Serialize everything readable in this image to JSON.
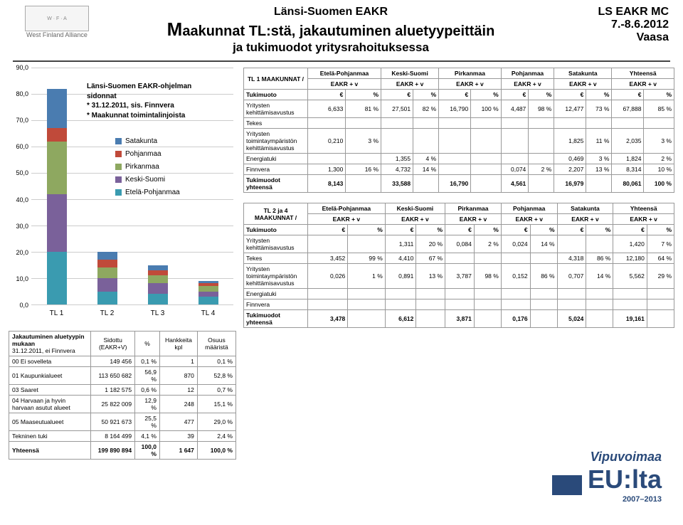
{
  "colors": {
    "satakunta": "#4a7cb0",
    "pohjanmaa": "#c04a3a",
    "pirkanmaa": "#8ea860",
    "keskisuomi": "#7a619a",
    "etelapohjanmaa": "#3a9bb0",
    "grid": "#cccccc",
    "border": "#999999",
    "text": "#000000"
  },
  "header": {
    "top_small": "Länsi-Suomen EAKR",
    "main": "Maakunnat TL:stä, jakautuminen aluetyypeittäin",
    "sub": "ja tukimuodot yritysrahoituksessa",
    "right1": "LS EAKR MC",
    "right2": "7.-8.6.2012",
    "right3": "Vaasa",
    "wfa": "West Finland Alliance"
  },
  "chart": {
    "y_max": 90,
    "y_ticks": [
      "90,0",
      "80,0",
      "70,0",
      "60,0",
      "50,0",
      "40,0",
      "30,0",
      "20,0",
      "10,0",
      "0,0"
    ],
    "overlay": [
      "Länsi-Suomen EAKR-ohjelman",
      "sidonnat",
      "* 31.12.2011, sis. Finnvera",
      "* Maakunnat toimintalinjoista"
    ],
    "legend": [
      "Satakunta",
      "Pohjanmaa",
      "Pirkanmaa",
      "Keski-Suomi",
      "Etelä-Pohjanmaa"
    ],
    "legend_colors": [
      "#4a7cb0",
      "#c04a3a",
      "#8ea860",
      "#7a619a",
      "#3a9bb0"
    ],
    "categories": [
      "TL 1",
      "TL 2",
      "TL 3",
      "TL 4"
    ],
    "stacks": [
      {
        "ep": 20,
        "ks": 22,
        "pi": 20,
        "po": 5,
        "sa": 15
      },
      {
        "ep": 5,
        "ks": 5,
        "pi": 4,
        "po": 3,
        "sa": 3
      },
      {
        "ep": 4,
        "ks": 4,
        "pi": 3,
        "po": 2,
        "sa": 2
      },
      {
        "ep": 3,
        "ks": 2,
        "pi": 2,
        "po": 1,
        "sa": 1
      }
    ]
  },
  "alloc": {
    "title": "Jakautuminen aluetyypin mukaan",
    "subtitle": "31.12.2011, ei Finnvera",
    "cols": [
      "Sidottu (EAKR+V)",
      "%",
      "Hankkeita kpl",
      "Osuus määristä"
    ],
    "rows": [
      [
        "00 Ei sovelleta",
        "149 456",
        "0,1 %",
        "1",
        "0,1 %"
      ],
      [
        "01 Kaupunkialueet",
        "113 650 682",
        "56,9 %",
        "870",
        "52,8 %"
      ],
      [
        "03 Saaret",
        "1 182 575",
        "0,6 %",
        "12",
        "0,7 %"
      ],
      [
        "04 Harvaan ja hyvin harvaan asutut alueet",
        "25 822 009",
        "12,9 %",
        "248",
        "15,1 %"
      ],
      [
        "05 Maaseutualueet",
        "50 921 673",
        "25,5 %",
        "477",
        "29,0 %"
      ],
      [
        "Tekninen tuki",
        "8 164 499",
        "4,1 %",
        "39",
        "2,4 %"
      ],
      [
        "Yhteensä",
        "199 890 894",
        "100,0 %",
        "1 647",
        "100,0 %"
      ]
    ]
  },
  "table1": {
    "corner": "TL 1 MAAKUNNAT /",
    "group_hdrs": [
      "Etelä-Pohjanmaa",
      "Keski-Suomi",
      "Pirkanmaa",
      "Pohjanmaa",
      "Satakunta",
      "Yhteensä"
    ],
    "sub_hdr": "EAKR + v",
    "row_hdr": "Tukimuoto",
    "col_unit_a": "€",
    "col_unit_b": "%",
    "rows": [
      [
        "Yritysten kehittämisavustus",
        "6,633",
        "81 %",
        "27,501",
        "82 %",
        "16,790",
        "100 %",
        "4,487",
        "98 %",
        "12,477",
        "73 %",
        "67,888",
        "85 %"
      ],
      [
        "Tekes",
        "",
        "",
        "",
        "",
        "",
        "",
        "",
        "",
        "",
        "",
        "",
        ""
      ],
      [
        "Yritysten toimintaympäristön kehittämisavustus",
        "0,210",
        "3 %",
        "",
        "",
        "",
        "",
        "",
        "",
        "1,825",
        "11 %",
        "2,035",
        "3 %"
      ],
      [
        "Energiatuki",
        "",
        "",
        "1,355",
        "4 %",
        "",
        "",
        "",
        "",
        "0,469",
        "3 %",
        "1,824",
        "2 %"
      ],
      [
        "Finnvera",
        "1,300",
        "16 %",
        "4,732",
        "14 %",
        "",
        "",
        "0,074",
        "2 %",
        "2,207",
        "13 %",
        "8,314",
        "10 %"
      ],
      [
        "Tukimuodot yhteensä",
        "8,143",
        "",
        "33,588",
        "",
        "16,790",
        "",
        "4,561",
        "",
        "16,979",
        "",
        "80,061",
        "100 %"
      ]
    ]
  },
  "table2": {
    "corner": "TL 2 ja 4 MAAKUNNAT /",
    "rows": [
      [
        "Yritysten kehittämisavustus",
        "",
        "",
        "1,311",
        "20 %",
        "0,084",
        "2 %",
        "0,024",
        "14 %",
        "",
        "",
        "1,420",
        "7 %"
      ],
      [
        "Tekes",
        "3,452",
        "99 %",
        "4,410",
        "67 %",
        "",
        "",
        "",
        "",
        "4,318",
        "86 %",
        "12,180",
        "64 %"
      ],
      [
        "Yritysten toimintaympäristön kehittämisavustus",
        "0,026",
        "1 %",
        "0,891",
        "13 %",
        "3,787",
        "98 %",
        "0,152",
        "86 %",
        "0,707",
        "14 %",
        "5,562",
        "29 %"
      ],
      [
        "Energiatuki",
        "",
        "",
        "",
        "",
        "",
        "",
        "",
        "",
        "",
        "",
        "",
        ""
      ],
      [
        "Finnvera",
        "",
        "",
        "",
        "",
        "",
        "",
        "",
        "",
        "",
        "",
        "",
        ""
      ],
      [
        "Tukimuodot yhteensä",
        "3,478",
        "",
        "6,612",
        "",
        "3,871",
        "",
        "0,176",
        "",
        "5,024",
        "",
        "19,161",
        ""
      ]
    ]
  },
  "footer": {
    "vipu": "Vipuvoimaa",
    "eulta": "EU:lta",
    "years": "2007–2013"
  }
}
